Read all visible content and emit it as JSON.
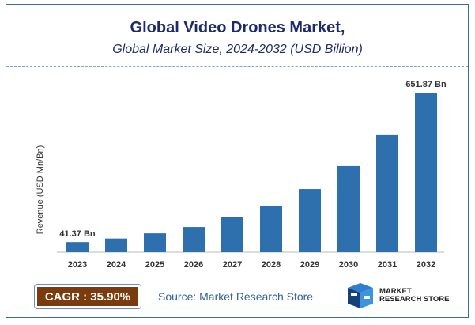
{
  "header": {
    "title": "Global Video Drones Market,",
    "subtitle": "Global Market Size, 2024-2032 (USD Billion)"
  },
  "chart_data": {
    "type": "bar",
    "categories": [
      "2023",
      "2024",
      "2025",
      "2026",
      "2027",
      "2028",
      "2029",
      "2030",
      "2031",
      "2032"
    ],
    "values": [
      41.37,
      56,
      77,
      103,
      142,
      190,
      258,
      352,
      478,
      651.87
    ],
    "ylabel": "Revenue (USD Mn/Bn)",
    "xlabel": "",
    "data_labels": {
      "first": "41.37 Bn",
      "last": "651.87 Bn"
    },
    "ylim": [
      0,
      710
    ],
    "grid": false,
    "bar_color": "#2e6fad"
  },
  "footer": {
    "cagr": "CAGR : 35.90%",
    "source": "Source: Market Research Store",
    "logo_line1": "MARKET",
    "logo_line2": "RESEARCH STORE"
  },
  "colors": {
    "title": "#1f2a6b",
    "cagr_bg": "#7a3b0e",
    "border": "#3d6a9c"
  }
}
